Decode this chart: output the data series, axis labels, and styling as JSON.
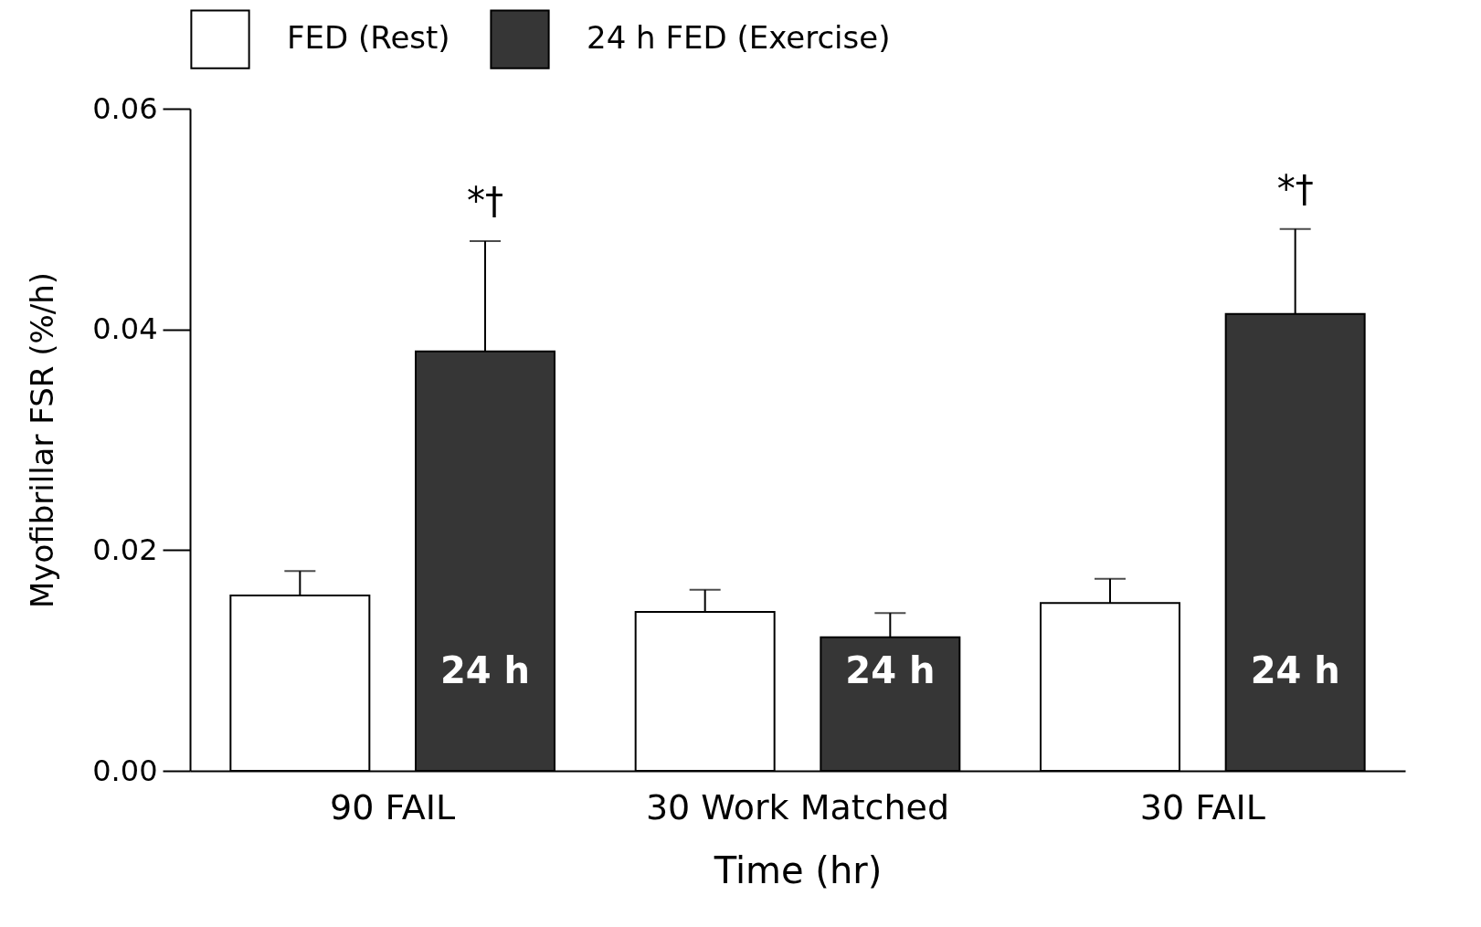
{
  "chart_data": {
    "type": "bar",
    "xlabel": "Time (hr)",
    "ylabel": "Myofibrillar FSR (%/h)",
    "categories": [
      "90 FAIL",
      "30 Work Matched",
      "30 FAIL"
    ],
    "series": [
      {
        "name": "FED (Rest)",
        "color": "#ffffff",
        "values": [
          0.0159,
          0.0144,
          0.0152
        ],
        "errors": [
          [
            0.0159,
            0.0181
          ],
          [
            0.0144,
            0.0164
          ],
          [
            0.0152,
            0.0174
          ]
        ]
      },
      {
        "name": "24 h FED (Exercise)",
        "color": "#363636",
        "values": [
          0.038,
          0.0121,
          0.0414
        ],
        "errors": [
          [
            0.038,
            0.048
          ],
          [
            0.0121,
            0.0143
          ],
          [
            0.0414,
            0.0491
          ]
        ]
      }
    ],
    "ylim": [
      0,
      0.06
    ],
    "yticks": [
      {
        "value": 0,
        "label": "0.00"
      },
      {
        "value": 0.02,
        "label": "0.02"
      },
      {
        "value": 0.04,
        "label": "0.04"
      },
      {
        "value": 0.06,
        "label": "0.06"
      }
    ],
    "annotations": [
      "*†",
      "*†",
      "24 h",
      "24 h",
      "24 h"
    ],
    "legend": "top",
    "grid": false
  }
}
